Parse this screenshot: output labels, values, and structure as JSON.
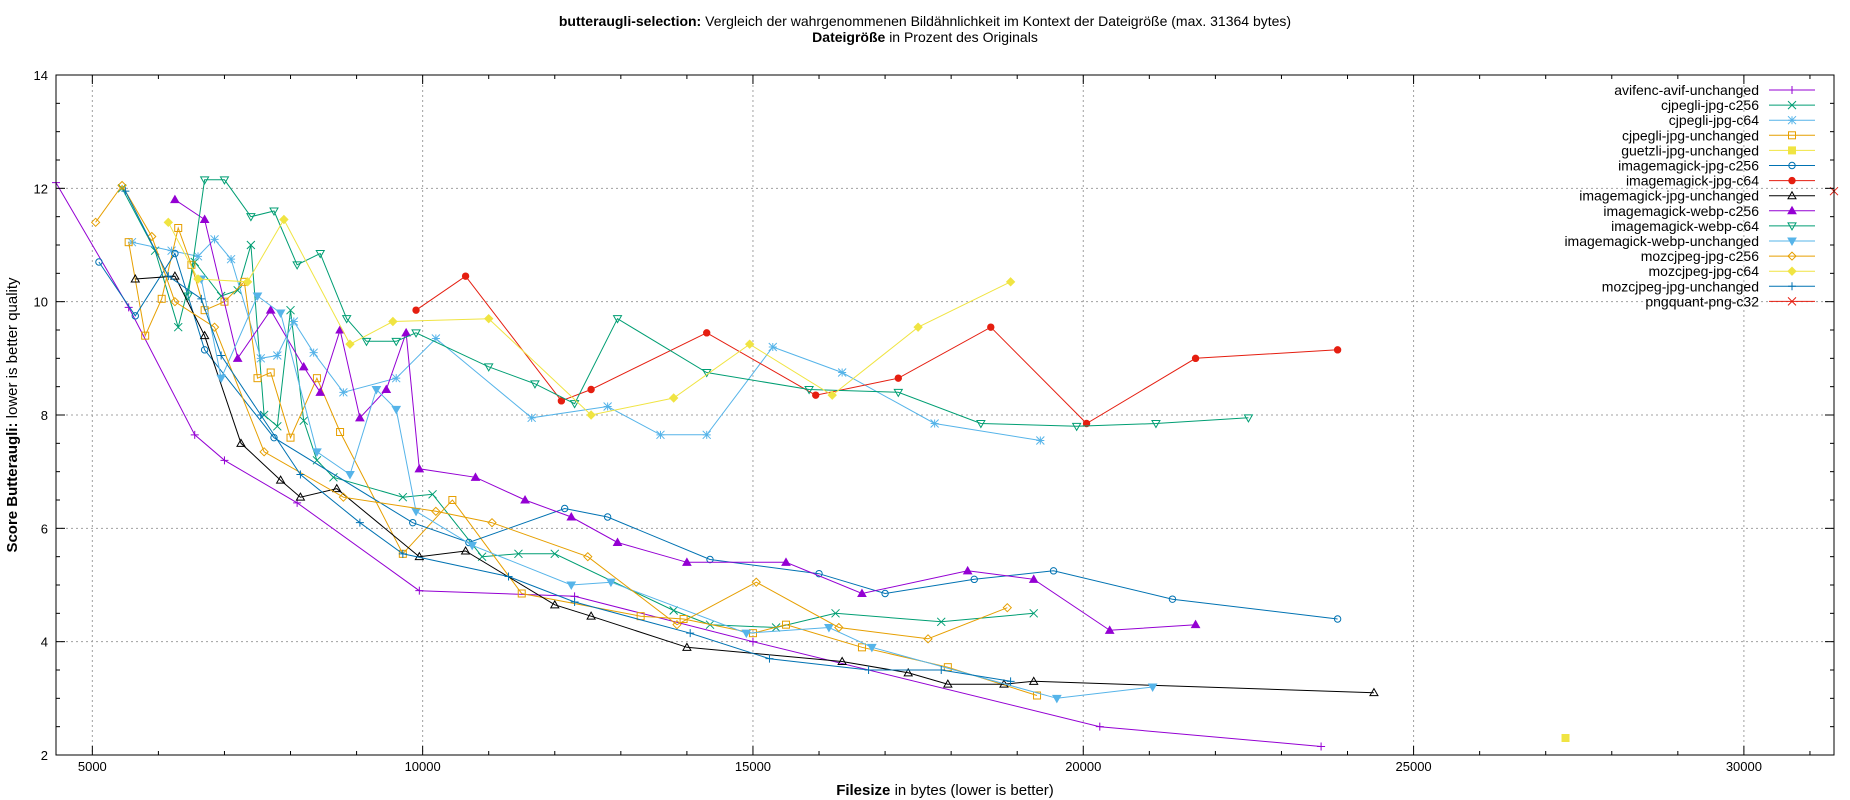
{
  "chart_data": {
    "type": "line",
    "title_bold": "butteraugli-selection:",
    "title_rest": "Vergleich der wahrgenommenen Bildähnlichkeit im Kontext der Dateigröße (max. 31364 bytes)",
    "subtitle_bold": "Dateigröße",
    "subtitle_rest": "in Prozent des Originals",
    "xlabel_bold": "Filesize",
    "xlabel_rest": "in bytes (lower is better)",
    "ylabel_bold": "Score Butteraugli:",
    "ylabel_rest": "lower is better quality",
    "xlim": [
      4450,
      31364
    ],
    "ylim": [
      2,
      14
    ],
    "x_ticks": [
      5000,
      10000,
      15000,
      20000,
      25000,
      30000
    ],
    "y_ticks": [
      2,
      4,
      6,
      8,
      10,
      12,
      14
    ],
    "grid": true,
    "legend_position": "top-right",
    "series": [
      {
        "name": "avifenc-avif-unchanged",
        "color": "#9400d3",
        "marker": "plus",
        "points": [
          [
            4450,
            12.1
          ],
          [
            5550,
            9.9
          ],
          [
            6550,
            7.65
          ],
          [
            7000,
            7.2
          ],
          [
            8100,
            6.45
          ],
          [
            9950,
            4.9
          ],
          [
            12300,
            4.8
          ],
          [
            15000,
            4.0
          ],
          [
            20250,
            2.5
          ],
          [
            23600,
            2.15
          ]
        ]
      },
      {
        "name": "cjpegli-jpg-c256",
        "color": "#009e73",
        "marker": "x",
        "points": [
          [
            5450,
            12.0
          ],
          [
            5950,
            10.9
          ],
          [
            6300,
            9.55
          ],
          [
            6550,
            10.7
          ],
          [
            6950,
            10.1
          ],
          [
            7200,
            10.2
          ],
          [
            7400,
            11.0
          ],
          [
            7600,
            8.0
          ],
          [
            7800,
            7.8
          ],
          [
            8000,
            9.85
          ],
          [
            8200,
            7.9
          ],
          [
            8400,
            7.2
          ],
          [
            8650,
            6.9
          ],
          [
            9700,
            6.55
          ],
          [
            10150,
            6.6
          ],
          [
            10900,
            5.5
          ],
          [
            11450,
            5.55
          ],
          [
            12000,
            5.55
          ],
          [
            13800,
            4.55
          ],
          [
            14350,
            4.3
          ],
          [
            15350,
            4.25
          ],
          [
            16250,
            4.5
          ],
          [
            17850,
            4.35
          ],
          [
            19250,
            4.5
          ]
        ]
      },
      {
        "name": "cjpegli-jpg-c64",
        "color": "#56b4e9",
        "marker": "star",
        "points": [
          [
            5600,
            11.05
          ],
          [
            6200,
            10.9
          ],
          [
            6600,
            10.8
          ],
          [
            6850,
            11.1
          ],
          [
            7100,
            10.75
          ],
          [
            7550,
            9.0
          ],
          [
            7800,
            9.05
          ],
          [
            8050,
            9.65
          ],
          [
            8350,
            9.1
          ],
          [
            8800,
            8.4
          ],
          [
            9600,
            8.65
          ],
          [
            10200,
            9.35
          ],
          [
            11650,
            7.95
          ],
          [
            12800,
            8.15
          ],
          [
            13600,
            7.65
          ],
          [
            14300,
            7.65
          ],
          [
            15300,
            9.2
          ],
          [
            16350,
            8.75
          ],
          [
            17750,
            7.85
          ],
          [
            19350,
            7.55
          ]
        ]
      },
      {
        "name": "cjpegli-jpg-unchanged",
        "color": "#e69f00",
        "marker": "square",
        "points": [
          [
            5550,
            11.05
          ],
          [
            5800,
            9.4
          ],
          [
            6050,
            10.05
          ],
          [
            6300,
            11.3
          ],
          [
            6500,
            10.65
          ],
          [
            6700,
            9.85
          ],
          [
            7000,
            10.0
          ],
          [
            7300,
            10.35
          ],
          [
            7500,
            8.65
          ],
          [
            7700,
            8.75
          ],
          [
            8000,
            7.6
          ],
          [
            8400,
            8.65
          ],
          [
            8750,
            7.7
          ],
          [
            9700,
            5.55
          ],
          [
            10450,
            6.5
          ],
          [
            11500,
            4.85
          ],
          [
            13300,
            4.45
          ],
          [
            13950,
            4.4
          ],
          [
            15000,
            4.15
          ],
          [
            15500,
            4.3
          ],
          [
            16650,
            3.9
          ],
          [
            17950,
            3.55
          ],
          [
            19300,
            3.05
          ]
        ]
      },
      {
        "name": "guetzli-jpg-unchanged",
        "color": "#f0e442",
        "marker": "filled-square",
        "points": [
          [
            27300,
            2.3
          ]
        ]
      },
      {
        "name": "imagemagick-jpg-c256",
        "color": "#0072b2",
        "marker": "circle",
        "points": [
          [
            5100,
            10.7
          ],
          [
            5650,
            9.75
          ],
          [
            6250,
            10.85
          ],
          [
            6700,
            9.15
          ],
          [
            7750,
            7.6
          ],
          [
            9850,
            6.1
          ],
          [
            10700,
            5.75
          ],
          [
            12150,
            6.35
          ],
          [
            12800,
            6.2
          ],
          [
            14350,
            5.45
          ],
          [
            16000,
            5.2
          ],
          [
            17000,
            4.85
          ],
          [
            18350,
            5.1
          ],
          [
            19550,
            5.25
          ],
          [
            21350,
            4.75
          ],
          [
            23850,
            4.4
          ]
        ]
      },
      {
        "name": "imagemagick-jpg-c64",
        "color": "#e51e10",
        "marker": "filled-circle",
        "points": [
          [
            9900,
            9.85
          ],
          [
            10650,
            10.45
          ],
          [
            12100,
            8.25
          ],
          [
            12550,
            8.45
          ],
          [
            14300,
            9.45
          ],
          [
            15950,
            8.35
          ],
          [
            17200,
            8.65
          ],
          [
            18600,
            9.55
          ],
          [
            20050,
            7.85
          ],
          [
            21700,
            9.0
          ],
          [
            23850,
            9.15
          ]
        ]
      },
      {
        "name": "imagemagick-jpg-unchanged",
        "color": "#000000",
        "marker": "triangle",
        "points": [
          [
            5650,
            10.4
          ],
          [
            6250,
            10.45
          ],
          [
            6700,
            9.4
          ],
          [
            7250,
            7.5
          ],
          [
            7850,
            6.85
          ],
          [
            8150,
            6.55
          ],
          [
            8700,
            6.7
          ],
          [
            9950,
            5.5
          ],
          [
            10650,
            5.6
          ],
          [
            12000,
            4.65
          ],
          [
            12550,
            4.45
          ],
          [
            14000,
            3.9
          ],
          [
            16350,
            3.65
          ],
          [
            17350,
            3.45
          ],
          [
            17950,
            3.25
          ],
          [
            18800,
            3.25
          ],
          [
            19250,
            3.3
          ],
          [
            24400,
            3.1
          ]
        ]
      },
      {
        "name": "imagemagick-webp-c256",
        "color": "#9400d3",
        "marker": "filled-triangle",
        "points": [
          [
            6250,
            11.8
          ],
          [
            6700,
            11.45
          ],
          [
            7200,
            9.0
          ],
          [
            7700,
            9.85
          ],
          [
            8200,
            8.85
          ],
          [
            8450,
            8.4
          ],
          [
            8750,
            9.5
          ],
          [
            9050,
            7.95
          ],
          [
            9450,
            8.45
          ],
          [
            9750,
            9.45
          ],
          [
            9950,
            7.05
          ],
          [
            10800,
            6.9
          ],
          [
            11550,
            6.5
          ],
          [
            12250,
            6.2
          ],
          [
            12950,
            5.75
          ],
          [
            14000,
            5.4
          ],
          [
            15500,
            5.4
          ],
          [
            16650,
            4.85
          ],
          [
            18250,
            5.25
          ],
          [
            19250,
            5.1
          ],
          [
            20400,
            4.2
          ],
          [
            21700,
            4.3
          ]
        ]
      },
      {
        "name": "imagemagick-webp-c64",
        "color": "#009e73",
        "marker": "triangle-down",
        "points": [
          [
            6450,
            10.1
          ],
          [
            6700,
            12.15
          ],
          [
            7000,
            12.15
          ],
          [
            7400,
            11.5
          ],
          [
            7750,
            11.6
          ],
          [
            8100,
            10.65
          ],
          [
            8450,
            10.85
          ],
          [
            8850,
            9.7
          ],
          [
            9150,
            9.3
          ],
          [
            9600,
            9.3
          ],
          [
            9900,
            9.45
          ],
          [
            11000,
            8.85
          ],
          [
            11700,
            8.55
          ],
          [
            12300,
            8.2
          ],
          [
            12950,
            9.7
          ],
          [
            14300,
            8.75
          ],
          [
            15850,
            8.45
          ],
          [
            17200,
            8.4
          ],
          [
            18450,
            7.85
          ],
          [
            19900,
            7.8
          ],
          [
            21100,
            7.85
          ],
          [
            22500,
            7.95
          ]
        ]
      },
      {
        "name": "imagemagick-webp-unchanged",
        "color": "#56b4e9",
        "marker": "filled-triangle-down",
        "points": [
          [
            6650,
            10.4
          ],
          [
            6950,
            8.65
          ],
          [
            7500,
            10.1
          ],
          [
            7850,
            9.8
          ],
          [
            8400,
            7.35
          ],
          [
            8900,
            6.95
          ],
          [
            9300,
            8.45
          ],
          [
            9600,
            8.1
          ],
          [
            9900,
            6.3
          ],
          [
            10750,
            5.7
          ],
          [
            12250,
            5.0
          ],
          [
            12850,
            5.05
          ],
          [
            14900,
            4.15
          ],
          [
            16150,
            4.25
          ],
          [
            16800,
            3.9
          ],
          [
            19600,
            3.0
          ],
          [
            21050,
            3.2
          ]
        ]
      },
      {
        "name": "mozcjpeg-jpg-c256",
        "color": "#e69f00",
        "marker": "diamond",
        "points": [
          [
            5050,
            11.4
          ],
          [
            5450,
            12.05
          ],
          [
            5900,
            11.15
          ],
          [
            6250,
            10.0
          ],
          [
            6850,
            9.55
          ],
          [
            7600,
            7.35
          ],
          [
            8800,
            6.55
          ],
          [
            10200,
            6.3
          ],
          [
            11050,
            6.1
          ],
          [
            12500,
            5.5
          ],
          [
            13850,
            4.3
          ],
          [
            15050,
            5.05
          ],
          [
            16300,
            4.25
          ],
          [
            17650,
            4.05
          ],
          [
            18850,
            4.6
          ]
        ]
      },
      {
        "name": "mozcjpeg-jpg-c64",
        "color": "#f0e442",
        "marker": "filled-diamond",
        "points": [
          [
            6150,
            11.4
          ],
          [
            6600,
            10.4
          ],
          [
            7350,
            10.35
          ],
          [
            7900,
            11.45
          ],
          [
            8900,
            9.25
          ],
          [
            9550,
            9.65
          ],
          [
            11000,
            9.7
          ],
          [
            12550,
            8.0
          ],
          [
            13800,
            8.3
          ],
          [
            14950,
            9.25
          ],
          [
            16200,
            8.35
          ],
          [
            17500,
            9.55
          ],
          [
            18900,
            10.35
          ]
        ]
      },
      {
        "name": "mozcjpeg-jpg-unchanged",
        "color": "#0072b2",
        "marker": "plus",
        "points": [
          [
            5500,
            11.95
          ],
          [
            6150,
            10.45
          ],
          [
            6650,
            10.05
          ],
          [
            6950,
            9.05
          ],
          [
            7550,
            8.0
          ],
          [
            8150,
            6.95
          ],
          [
            9050,
            6.1
          ],
          [
            9700,
            5.55
          ],
          [
            11300,
            5.15
          ],
          [
            12300,
            4.7
          ],
          [
            14050,
            4.15
          ],
          [
            15250,
            3.7
          ],
          [
            16750,
            3.5
          ],
          [
            17850,
            3.5
          ],
          [
            18900,
            3.3
          ]
        ]
      },
      {
        "name": "pngquant-png-c32",
        "color": "#e51e10",
        "marker": "x",
        "points": [
          [
            31364,
            11.95
          ]
        ]
      }
    ]
  }
}
